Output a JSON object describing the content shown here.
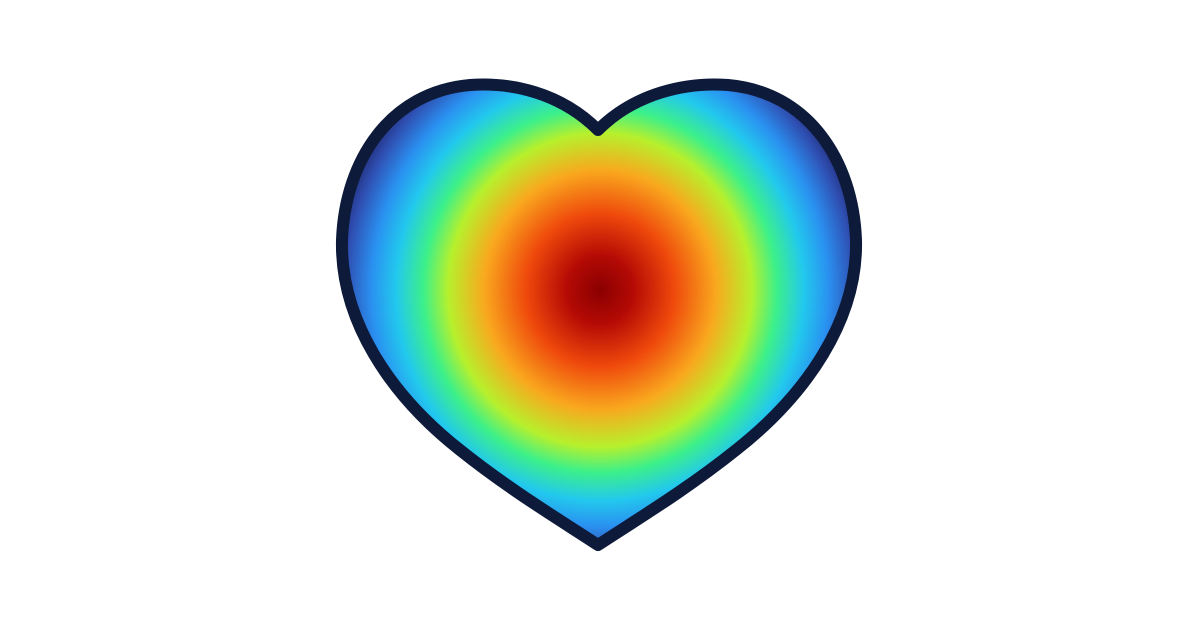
{
  "background_color": "#ffffff",
  "heart": {
    "icon": "heart-icon",
    "outline_color": "#0e1a3a",
    "gradient": "turbo",
    "gradient_stops": [
      {
        "offset": 0.0,
        "color": "#8a0000"
      },
      {
        "offset": 0.12,
        "color": "#b40a05"
      },
      {
        "offset": 0.27,
        "color": "#ef4a0c"
      },
      {
        "offset": 0.42,
        "color": "#f9a81e"
      },
      {
        "offset": 0.55,
        "color": "#b7f02c"
      },
      {
        "offset": 0.64,
        "color": "#3cf08a"
      },
      {
        "offset": 0.74,
        "color": "#22c8ee"
      },
      {
        "offset": 0.83,
        "color": "#2a90f0"
      },
      {
        "offset": 0.92,
        "color": "#2f4fb2"
      },
      {
        "offset": 1.0,
        "color": "#1b1f5e"
      }
    ]
  }
}
